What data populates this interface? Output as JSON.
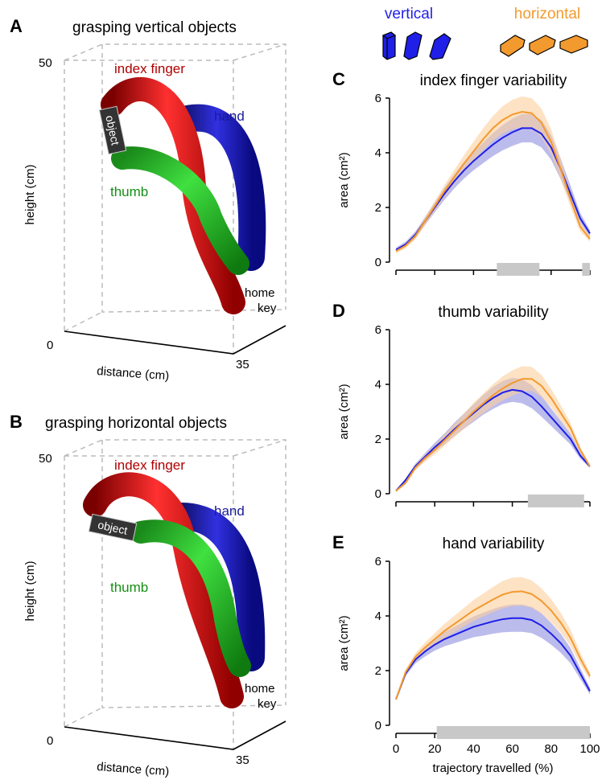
{
  "panels": [
    {
      "letter": "A",
      "title": "grasping vertical objects",
      "zmax": "50",
      "zmin": "0",
      "xmax": "35",
      "ylabel": "height (cm)",
      "xlabel": "distance (cm)",
      "index": "index finger",
      "hand": "hand",
      "thumb": "thumb",
      "object": "object",
      "home": "home",
      "key": "key"
    },
    {
      "letter": "B",
      "title": "grasping horizontal objects",
      "zmax": "50",
      "zmin": "0",
      "xmax": "35",
      "ylabel": "height (cm)",
      "xlabel": "distance (cm)",
      "index": "index finger",
      "hand": "hand",
      "thumb": "thumb",
      "object": "object",
      "home": "home",
      "key": "key"
    }
  ],
  "chart_data": [
    {
      "type": "line",
      "panel": "C",
      "title": "index finger variability",
      "ylabel": "area (cm²)",
      "x": [
        0,
        5,
        10,
        15,
        20,
        25,
        30,
        35,
        40,
        45,
        50,
        55,
        60,
        65,
        70,
        75,
        80,
        85,
        90,
        95,
        100
      ],
      "xlim": [
        0,
        100
      ],
      "xticks": [
        0,
        20,
        40,
        60,
        80,
        100
      ],
      "xtick_labels": false,
      "ylim": [
        0,
        6
      ],
      "yticks": [
        0,
        2,
        4,
        6
      ],
      "series": [
        {
          "name": "vertical",
          "color": "#1f1fe8",
          "band_color": "#8f8fe0",
          "values": [
            0.45,
            0.65,
            1.0,
            1.5,
            2.0,
            2.5,
            2.95,
            3.35,
            3.7,
            4.0,
            4.3,
            4.55,
            4.75,
            4.9,
            4.9,
            4.7,
            4.2,
            3.4,
            2.5,
            1.6,
            1.05
          ],
          "errors": [
            0.08,
            0.1,
            0.12,
            0.15,
            0.18,
            0.22,
            0.26,
            0.3,
            0.34,
            0.38,
            0.42,
            0.46,
            0.5,
            0.52,
            0.52,
            0.5,
            0.45,
            0.38,
            0.3,
            0.2,
            0.12
          ]
        },
        {
          "name": "horizontal",
          "color": "#f39a2e",
          "band_color": "#fbcf9d",
          "values": [
            0.4,
            0.6,
            0.95,
            1.5,
            2.05,
            2.6,
            3.1,
            3.6,
            4.05,
            4.5,
            4.9,
            5.2,
            5.4,
            5.5,
            5.45,
            5.1,
            4.4,
            3.4,
            2.3,
            1.3,
            0.85
          ],
          "errors": [
            0.08,
            0.1,
            0.12,
            0.15,
            0.18,
            0.22,
            0.26,
            0.3,
            0.35,
            0.4,
            0.45,
            0.5,
            0.54,
            0.56,
            0.55,
            0.52,
            0.46,
            0.38,
            0.28,
            0.18,
            0.1
          ]
        }
      ],
      "significant_ranges": [
        [
          52,
          74
        ],
        [
          96,
          100
        ]
      ]
    },
    {
      "type": "line",
      "panel": "D",
      "title": "thumb variability",
      "ylabel": "area (cm²)",
      "x": [
        0,
        5,
        10,
        15,
        20,
        25,
        30,
        35,
        40,
        45,
        50,
        55,
        60,
        65,
        70,
        75,
        80,
        85,
        90,
        95,
        100
      ],
      "xlim": [
        0,
        100
      ],
      "xticks": [
        0,
        20,
        40,
        60,
        80,
        100
      ],
      "xtick_labels": false,
      "ylim": [
        0,
        6
      ],
      "yticks": [
        0,
        2,
        4,
        6
      ],
      "series": [
        {
          "color": "#1f1fe8",
          "band_color": "#8f8fe0",
          "values": [
            0.1,
            0.5,
            1.0,
            1.35,
            1.7,
            2.0,
            2.35,
            2.65,
            2.95,
            3.25,
            3.5,
            3.7,
            3.8,
            3.75,
            3.55,
            3.2,
            2.8,
            2.4,
            2.0,
            1.4,
            1.0
          ],
          "errors": [
            0.03,
            0.06,
            0.1,
            0.13,
            0.16,
            0.2,
            0.24,
            0.28,
            0.32,
            0.36,
            0.4,
            0.42,
            0.44,
            0.44,
            0.42,
            0.38,
            0.32,
            0.26,
            0.2,
            0.12,
            0.06
          ]
        },
        {
          "color": "#f39a2e",
          "band_color": "#fbcf9d",
          "values": [
            0.1,
            0.4,
            0.95,
            1.3,
            1.6,
            1.95,
            2.3,
            2.65,
            3.0,
            3.3,
            3.6,
            3.85,
            4.05,
            4.2,
            4.2,
            3.95,
            3.5,
            2.95,
            2.4,
            1.6,
            1.0
          ],
          "errors": [
            0.03,
            0.06,
            0.1,
            0.13,
            0.16,
            0.2,
            0.24,
            0.28,
            0.32,
            0.36,
            0.4,
            0.44,
            0.46,
            0.46,
            0.44,
            0.4,
            0.34,
            0.28,
            0.2,
            0.12,
            0.06
          ]
        }
      ],
      "significant_ranges": [
        [
          68,
          97
        ]
      ]
    },
    {
      "type": "line",
      "panel": "E",
      "title": "hand variability",
      "ylabel": "area (cm²)",
      "xlabel": "trajectory travelled (%)",
      "x": [
        0,
        5,
        10,
        15,
        20,
        25,
        30,
        35,
        40,
        45,
        50,
        55,
        60,
        65,
        70,
        75,
        80,
        85,
        90,
        95,
        100
      ],
      "xlim": [
        0,
        100
      ],
      "xticks": [
        0,
        20,
        40,
        60,
        80,
        100
      ],
      "xtick_labels": true,
      "ylim": [
        0,
        6
      ],
      "yticks": [
        0,
        2,
        4,
        6
      ],
      "series": [
        {
          "color": "#1f1fe8",
          "band_color": "#8f8fe0",
          "values": [
            0.95,
            1.9,
            2.4,
            2.7,
            2.95,
            3.15,
            3.3,
            3.45,
            3.6,
            3.7,
            3.8,
            3.88,
            3.92,
            3.92,
            3.85,
            3.65,
            3.35,
            3.0,
            2.55,
            1.9,
            1.25
          ],
          "errors": [
            0.05,
            0.1,
            0.14,
            0.18,
            0.22,
            0.26,
            0.3,
            0.34,
            0.38,
            0.42,
            0.45,
            0.48,
            0.5,
            0.5,
            0.48,
            0.45,
            0.4,
            0.35,
            0.28,
            0.2,
            0.12
          ]
        },
        {
          "color": "#f39a2e",
          "band_color": "#fbcf9d",
          "values": [
            0.95,
            1.95,
            2.5,
            2.85,
            3.15,
            3.45,
            3.7,
            3.95,
            4.2,
            4.4,
            4.6,
            4.78,
            4.88,
            4.9,
            4.8,
            4.55,
            4.2,
            3.75,
            3.2,
            2.45,
            1.8
          ],
          "errors": [
            0.05,
            0.1,
            0.14,
            0.18,
            0.22,
            0.26,
            0.3,
            0.34,
            0.38,
            0.42,
            0.46,
            0.5,
            0.52,
            0.52,
            0.5,
            0.46,
            0.42,
            0.36,
            0.3,
            0.22,
            0.14
          ]
        }
      ],
      "significant_ranges": [
        [
          21,
          100
        ]
      ]
    }
  ]
}
